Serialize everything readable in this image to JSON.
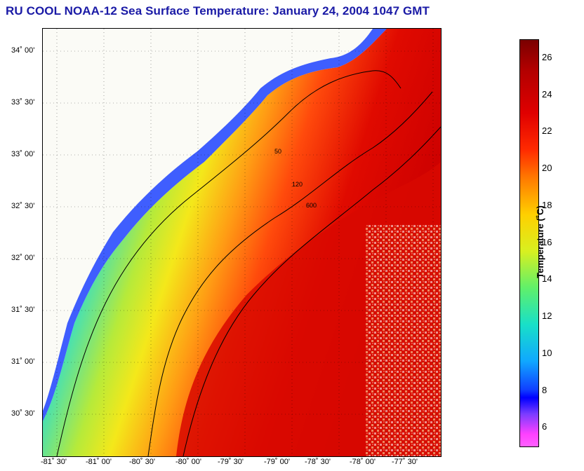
{
  "title": "RU COOL  NOAA-12  Sea Surface Temperature:  January 24, 2004 1047 GMT",
  "map": {
    "lat_labels": [
      "34˚ 00'",
      "33˚ 30'",
      "33˚ 00'",
      "32˚ 30'",
      "32˚ 00'",
      "31˚ 30'",
      "31˚ 00'",
      "30˚ 30'"
    ],
    "lon_labels": [
      "-81˚ 30'",
      "-81˚ 00'",
      "-80˚ 30'",
      "-80˚ 00'",
      "-79˚ 30'",
      "-79˚ 00'",
      "-78˚ 30'",
      "-78˚ 00'",
      "-77˚ 30'"
    ],
    "contour_labels": [
      "50",
      "120",
      "600"
    ]
  },
  "colorbar": {
    "title": "Temperature (˚C)",
    "ticks": [
      "26",
      "24",
      "22",
      "20",
      "18",
      "16",
      "14",
      "12",
      "10",
      "8",
      "6"
    ],
    "min": 5,
    "max": 27
  },
  "colors": {
    "title": "#1a1aa6",
    "land": "#fbfbf6",
    "cold_shelf": "#1f6bff",
    "gulf_stream": "#cc0000"
  }
}
